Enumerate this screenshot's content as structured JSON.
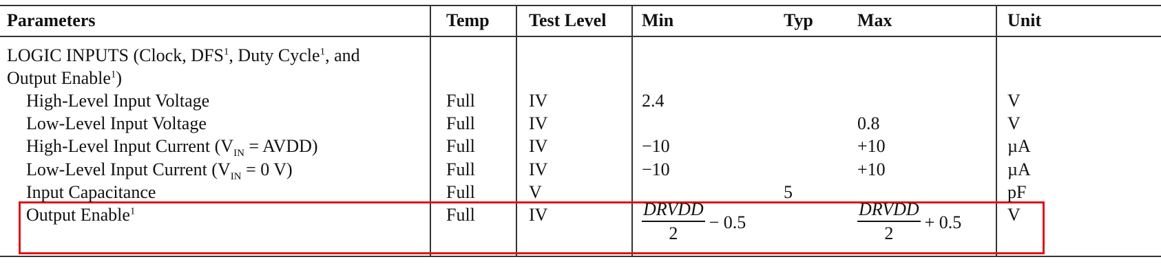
{
  "header": [
    "Parameters",
    "Temp",
    "Test Level",
    "Min",
    "Typ",
    "Max",
    "Unit"
  ],
  "section": {
    "parts": [
      {
        "text": "LOGIC INPUTS (Clock, DFS"
      },
      {
        "sup": "1"
      },
      {
        "text": ", Duty Cycle"
      },
      {
        "sup": "1"
      },
      {
        "text": ", and"
      },
      {
        "break": "Output Enable"
      },
      {
        "sup": "1"
      },
      {
        "text": ")"
      }
    ]
  },
  "rows": [
    {
      "parameter": [
        {
          "text": "High-Level Input Voltage"
        }
      ],
      "temp": "Full",
      "test_level": "IV",
      "min": "2.4",
      "typ": "",
      "max": "",
      "unit": "V"
    },
    {
      "parameter": [
        {
          "text": "Low-Level Input Voltage"
        }
      ],
      "temp": "Full",
      "test_level": "IV",
      "min": "",
      "typ": "",
      "max": "0.8",
      "unit": "V"
    },
    {
      "parameter": [
        {
          "text": "High-Level Input Current (V"
        },
        {
          "sub": "IN"
        },
        {
          "text": " = AVDD)"
        }
      ],
      "temp": "Full",
      "test_level": "IV",
      "min": "−10",
      "typ": "",
      "max": "+10",
      "unit": "µA"
    },
    {
      "parameter": [
        {
          "text": "Low-Level Input Current (V"
        },
        {
          "sub": "IN"
        },
        {
          "text": " = 0 V)"
        }
      ],
      "temp": "Full",
      "test_level": "IV",
      "min": "−10",
      "typ": "",
      "max": "+10",
      "unit": "µA"
    },
    {
      "parameter": [
        {
          "text": "Input Capacitance"
        }
      ],
      "temp": "Full",
      "test_level": "V",
      "min": "",
      "typ": "5",
      "max": "",
      "unit": "pF"
    },
    {
      "parameter": [
        {
          "text": "Output Enable"
        },
        {
          "sup": "1"
        }
      ],
      "temp": "Full",
      "test_level": "IV",
      "min": {
        "numerator": "DRVDD",
        "denominator": "2",
        "suffix": "− 0.5"
      },
      "typ": "",
      "max": {
        "numerator": "DRVDD",
        "denominator": "2",
        "suffix": "+ 0.5"
      },
      "unit": "V"
    }
  ]
}
